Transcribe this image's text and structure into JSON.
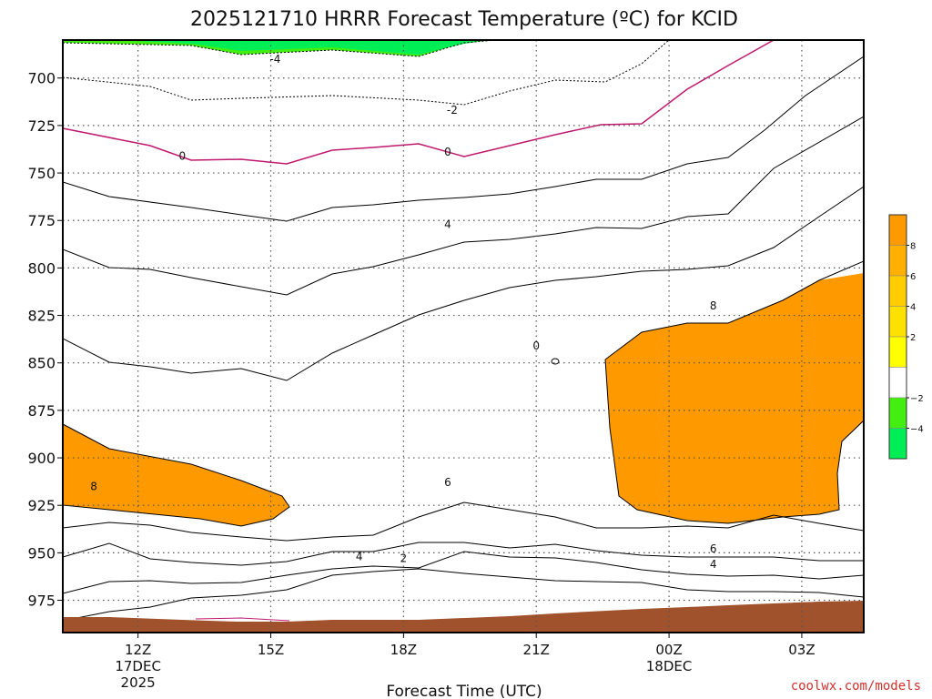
{
  "chart_data": {
    "type": "heatmap",
    "title": "2025121710 HRRR Forecast Temperature (ºC) for KCID",
    "xlabel": "Forecast Time (UTC)",
    "ylabel": "",
    "watermark": "coolwx.com/models",
    "y_scale": "pressure",
    "y_range_hPa": [
      680,
      992
    ],
    "x_range_hours": [
      10.3,
      28.4
    ],
    "y_ticks": [
      700,
      725,
      750,
      775,
      800,
      825,
      850,
      875,
      900,
      925,
      950,
      975
    ],
    "x_ticks": [
      {
        "hour": 12,
        "label": "12Z",
        "sub": [
          "17DEC",
          "2025"
        ]
      },
      {
        "hour": 15,
        "label": "15Z",
        "sub": []
      },
      {
        "hour": 18,
        "label": "18Z",
        "sub": []
      },
      {
        "hour": 21,
        "label": "21Z",
        "sub": []
      },
      {
        "hour": 24,
        "label": "00Z",
        "sub": [
          "18DEC"
        ]
      },
      {
        "hour": 27,
        "label": "03Z",
        "sub": []
      }
    ],
    "grid": true,
    "colorbar": {
      "placement": "right",
      "levels": [
        {
          "label": "",
          "color": "#ff9900"
        },
        {
          "label": "8",
          "color": "#ffb000"
        },
        {
          "label": "6",
          "color": "#ffcc00"
        },
        {
          "label": "4",
          "color": "#ffe100"
        },
        {
          "label": "2",
          "color": "#ffff00"
        },
        {
          "label": "",
          "color": "#ffffff"
        },
        {
          "label": "−2",
          "color": "#44ee11"
        },
        {
          "label": "−4",
          "color": "#00ee55"
        }
      ]
    },
    "contour_labels": [
      {
        "text": "-4",
        "hour": 15.1,
        "p": 690
      },
      {
        "text": "-2",
        "hour": 19.1,
        "p": 717
      },
      {
        "text": "0",
        "hour": 13.0,
        "p": 741
      },
      {
        "text": "0",
        "hour": 19.0,
        "p": 739
      },
      {
        "text": "4",
        "hour": 19.0,
        "p": 777
      },
      {
        "text": "8",
        "hour": 25.0,
        "p": 820
      },
      {
        "text": "0",
        "hour": 21.0,
        "p": 841
      },
      {
        "text": "8",
        "hour": 11.0,
        "p": 915
      },
      {
        "text": "6",
        "hour": 19.0,
        "p": 913
      },
      {
        "text": "4",
        "hour": 17.0,
        "p": 952
      },
      {
        "text": "2",
        "hour": 18.0,
        "p": 953
      },
      {
        "text": "6",
        "hour": 25.0,
        "p": 948
      },
      {
        "text": "4",
        "hour": 25.0,
        "p": 956
      }
    ]
  }
}
